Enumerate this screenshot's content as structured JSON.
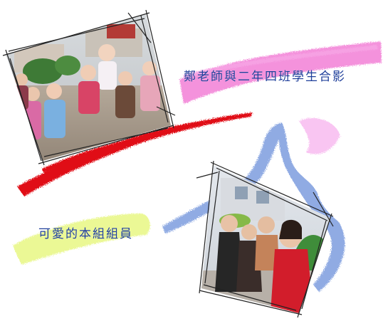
{
  "captions": {
    "top": "鄭老師與二年四班學生合影",
    "bottom": "可愛的本組組員"
  },
  "photos": [
    {
      "subject": "group of young students with teacher outdoors"
    },
    {
      "subject": "students smiling in front of bushes"
    }
  ],
  "colors": {
    "background": "#ffffff",
    "caption_text": "#1f3f9a",
    "pink_brush": "#f27fd6",
    "red_brush": "#e00c18",
    "blue_brush": "#6b8fd9",
    "yellow_brush": "#e9f78a",
    "light_pink_brush": "#f7b7ef"
  }
}
